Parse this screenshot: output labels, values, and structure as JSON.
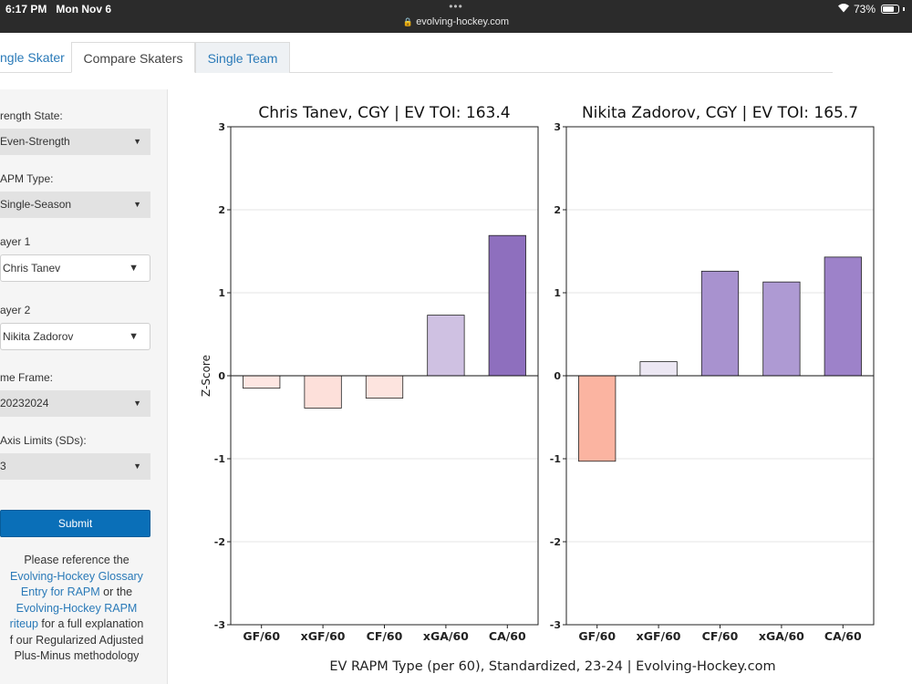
{
  "status_bar": {
    "time": "6:17 PM",
    "day": "Mon Nov 6",
    "url": "evolving-hockey.com",
    "dots": "•••",
    "battery": "73%",
    "battery_level": 0.73,
    "icons": [
      "lock-icon",
      "wifi-icon",
      "battery-icon"
    ]
  },
  "tabs": [
    {
      "label": "ngle Skater"
    },
    {
      "label": "Compare Skaters",
      "active": true
    },
    {
      "label": "Single Team"
    }
  ],
  "sidebar": {
    "strength_label": "rength State:",
    "strength_value": "Even-Strength",
    "rapm_label": "APM Type:",
    "rapm_value": "Single-Season",
    "player1_label": "ayer 1",
    "player1_value": "Chris Tanev",
    "player2_label": "ayer 2",
    "player2_value": "Nikita Zadorov",
    "timeframe_label": "me Frame:",
    "timeframe_value": "20232024",
    "axis_label": "Axis Limits (SDs):",
    "axis_value": "3",
    "submit_label": "Submit",
    "ref_1": "Please reference the",
    "ref_link1_a": "Evolving-Hockey Glossary",
    "ref_link1_b": "Entry for RAPM",
    "ref_or": " or the",
    "ref_link2_a": "Evolving-Hockey RAPM",
    "ref_link2_b": "riteup",
    "ref_2": " for a full explanation",
    "ref_3": "f our Regularized Adjusted",
    "ref_4": "Plus-Minus methodology"
  },
  "chart_data": {
    "type": "bar",
    "ylabel": "Z-Score",
    "xlabel": "EV RAPM Type (per 60), Standardized, 23-24    |    Evolving-Hockey.com",
    "ylim": [
      -3,
      3
    ],
    "yticks": [
      -3,
      -2,
      -1,
      0,
      1,
      2,
      3
    ],
    "grid": "horizontal",
    "categories": [
      "GF/60",
      "xGF/60",
      "CF/60",
      "xGA/60",
      "CA/60"
    ],
    "panels": [
      {
        "title": "Chris Tanev, CGY  |  EV TOI: 163.4",
        "values": [
          -0.15,
          -0.39,
          -0.27,
          0.73,
          1.69
        ],
        "colors": [
          "#fde6e2",
          "#fde0da",
          "#fde4df",
          "#cfc1e2",
          "#8e6fbe"
        ]
      },
      {
        "title": "Nikita Zadorov, CGY  |  EV TOI: 165.7",
        "values": [
          -1.03,
          0.17,
          1.26,
          1.13,
          1.43
        ],
        "colors": [
          "#fbb4a1",
          "#ece7f3",
          "#a892cf",
          "#ae9ad3",
          "#9d82c9"
        ]
      }
    ]
  }
}
